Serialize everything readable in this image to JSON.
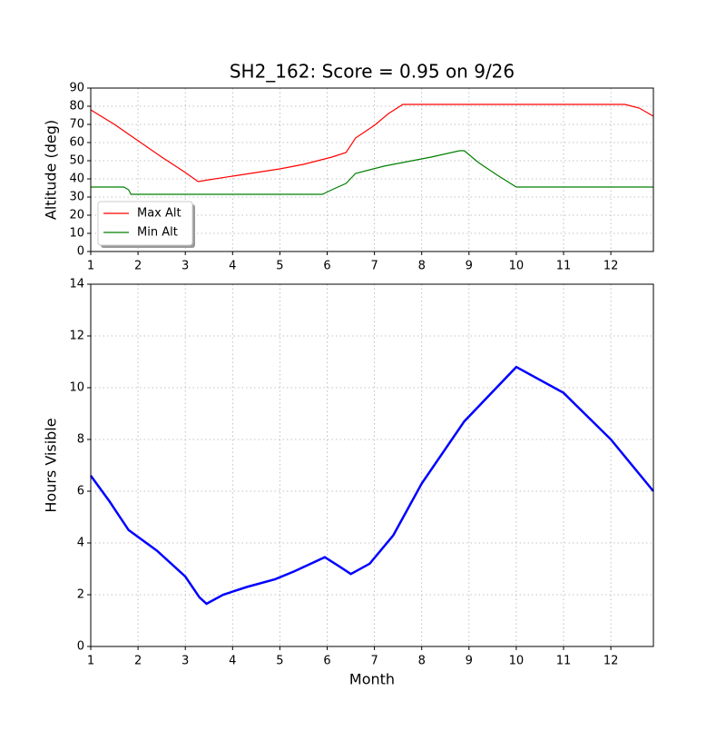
{
  "chart_data": [
    {
      "type": "line",
      "title": "SH2_162: Score = 0.95 on 9/26",
      "y_label": "Altitude (deg)",
      "xlim": [
        1,
        12.9
      ],
      "xticks": [
        1,
        2,
        3,
        4,
        5,
        6,
        7,
        8,
        9,
        10,
        11,
        12
      ],
      "ylim": [
        0,
        90
      ],
      "yticks": [
        0,
        10,
        20,
        30,
        40,
        50,
        60,
        70,
        80,
        90
      ],
      "grid": true,
      "legend": "lower left",
      "series": [
        {
          "name": "Max Alt",
          "color": "#ff0000",
          "x": [
            1,
            1.5,
            2,
            2.5,
            3,
            3.27,
            3.5,
            4,
            4.5,
            5,
            5.5,
            5.8,
            6.1,
            6.4,
            6.6,
            7,
            7.3,
            7.6,
            8,
            9,
            10,
            11,
            12,
            12.3,
            12.6,
            12.9
          ],
          "values": [
            78,
            70,
            61,
            52,
            43.5,
            38.5,
            39.5,
            41.5,
            43.5,
            45.5,
            48,
            50,
            52,
            54.5,
            62.5,
            69.5,
            76,
            81,
            81,
            81,
            81,
            81,
            81,
            81,
            79,
            74.5
          ]
        },
        {
          "name": "Min Alt",
          "color": "#008000",
          "x": [
            1,
            1.3,
            1.7,
            1.8,
            1.85,
            2.5,
            3,
            4,
            5,
            5.5,
            5.9,
            6.1,
            6.4,
            6.6,
            7.2,
            8.2,
            8.8,
            8.9,
            9.2,
            9.6,
            10,
            11,
            12,
            12.9
          ],
          "values": [
            35.5,
            35.5,
            35.5,
            34,
            31.5,
            31.5,
            31.5,
            31.5,
            31.5,
            31.5,
            31.5,
            34,
            37.5,
            43,
            47,
            52,
            55.5,
            55.5,
            49,
            42,
            35.5,
            35.5,
            35.5,
            35.5
          ]
        }
      ]
    },
    {
      "type": "line",
      "x_label": "Month",
      "y_label": "Hours Visible",
      "xlim": [
        1,
        12.9
      ],
      "xticks": [
        1,
        2,
        3,
        4,
        5,
        6,
        7,
        8,
        9,
        10,
        11,
        12
      ],
      "ylim": [
        0,
        14
      ],
      "yticks": [
        0,
        2,
        4,
        6,
        8,
        10,
        12,
        14
      ],
      "grid": true,
      "series": [
        {
          "color": "#0000ff",
          "x": [
            1,
            1.4,
            1.8,
            2.4,
            3,
            3.3,
            3.45,
            3.8,
            4.3,
            4.9,
            5.3,
            5.95,
            6.25,
            6.5,
            6.9,
            7.4,
            8,
            8.9,
            10,
            11,
            12,
            12.9
          ],
          "values": [
            6.6,
            5.6,
            4.5,
            3.7,
            2.7,
            1.9,
            1.65,
            2.0,
            2.3,
            2.6,
            2.9,
            3.45,
            3.1,
            2.8,
            3.2,
            4.3,
            6.3,
            8.7,
            10.8,
            9.8,
            8.0,
            6.0
          ]
        }
      ]
    }
  ]
}
